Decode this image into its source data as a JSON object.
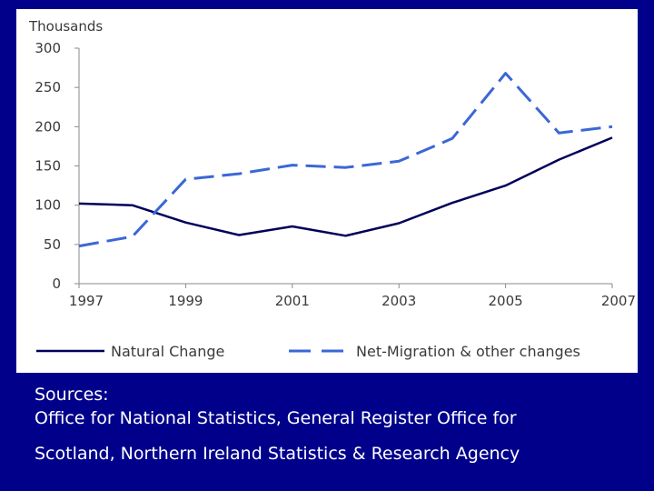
{
  "chart_data": {
    "type": "line",
    "ylabel": "Thousands",
    "x": [
      1997,
      1998,
      1999,
      2000,
      2001,
      2002,
      2003,
      2004,
      2005,
      2006,
      2007
    ],
    "x_tick_labels": [
      "1997",
      "1999",
      "2001",
      "2003",
      "2005",
      "2007"
    ],
    "y_tick_labels": [
      "0",
      "50",
      "100",
      "150",
      "200",
      "250",
      "300"
    ],
    "ylim": [
      0,
      300
    ],
    "xlim": [
      1997,
      2007
    ],
    "grid": false,
    "legend_position": "bottom",
    "series": [
      {
        "name": "Natural Change",
        "color": "#00005a",
        "style": "solid",
        "values": [
          102,
          100,
          78,
          62,
          73,
          61,
          77,
          103,
          125,
          158,
          186
        ]
      },
      {
        "name": "Net-Migration & other changes",
        "color": "#3b67d6",
        "style": "dashed",
        "values": [
          48,
          60,
          133,
          140,
          151,
          148,
          156,
          185,
          268,
          192,
          200
        ]
      }
    ]
  },
  "footer": {
    "line1": "Sources:",
    "line2": "Office for National Statistics, General Register Office for",
    "line3": "Scotland, Northern Ireland Statistics & Research Agency"
  }
}
